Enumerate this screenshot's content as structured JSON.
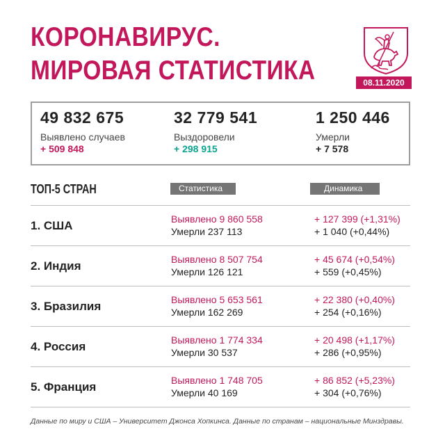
{
  "header": {
    "title_line1": "КОРОНАВИРУС.",
    "title_line2": "МИРОВАЯ СТАТИСТИКА",
    "date": "08.11.2020",
    "emblem_icon": "moscow-coat-of-arms-icon"
  },
  "totals": [
    {
      "value": "49 832 675",
      "label": "Выявлено случаев",
      "delta": "+ 509 848",
      "delta_color": "#c2185b"
    },
    {
      "value": "32 779 541",
      "label": "Выздоровели",
      "delta": "+ 298 915",
      "delta_color": "#0aa38d"
    },
    {
      "value": "1 250 446",
      "label": "Умерли",
      "delta": "+ 7 578",
      "delta_color": "#222222"
    }
  ],
  "top5": {
    "title": "ТОП-5 СТРАН",
    "col_stat": "Статистика",
    "col_dyn": "Динамика",
    "rows": [
      {
        "country": "1. США",
        "detected": "Выявлено 9 860 558",
        "died": "Умерли 237 113",
        "dyn_detected": "+ 127 399 (+1,31%)",
        "dyn_died": "+ 1 040 (+0,44%)"
      },
      {
        "country": "2. Индия",
        "detected": "Выявлено 8 507 754",
        "died": "Умерли 126 121",
        "dyn_detected": "+ 45 674 (+0,54%)",
        "dyn_died": "+ 559 (+0,45%)"
      },
      {
        "country": "3. Бразилия",
        "detected": "Выявлено 5 653 561",
        "died": "Умерли 162 269",
        "dyn_detected": "+ 22 380 (+0,40%)",
        "dyn_died": "+ 254 (+0,16%)"
      },
      {
        "country": "4. Россия",
        "detected": "Выявлено 1 774 334",
        "died": "Умерли 30 537",
        "dyn_detected": "+ 20 498 (+1,17%)",
        "dyn_died": "+ 286 (+0,95%)"
      },
      {
        "country": "5. Франция",
        "detected": "Выявлено 1 748 705",
        "died": "Умерли 40 169",
        "dyn_detected": "+ 86 852 (+5,23%)",
        "dyn_died": "+ 304 (+0,76%)"
      }
    ]
  },
  "footnote": "Данные по миру и США – Университет Джонса Хопкинса. Данные по странам – национальные Минздравы.",
  "colors": {
    "accent": "#c2185b",
    "recovered": "#0aa38d",
    "pill": "#757575"
  }
}
